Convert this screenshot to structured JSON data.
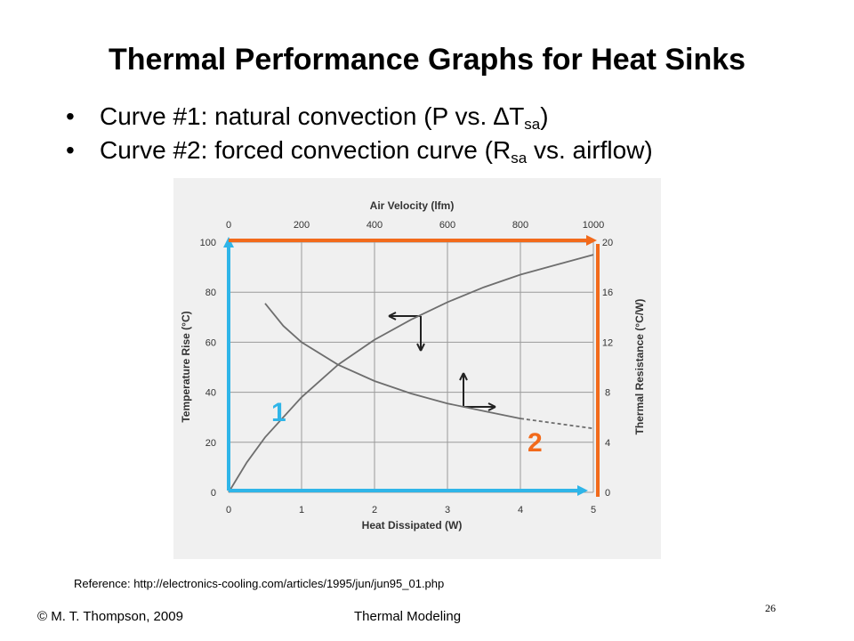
{
  "slide": {
    "title": "Thermal Performance Graphs for Heat Sinks",
    "bullets": [
      {
        "before": "Curve #1: natural convection (P vs. ",
        "symbol": "∆",
        "var": "T",
        "sub": "sa",
        "after": ")"
      },
      {
        "before": "Curve #2: forced convection curve (R",
        "sub": "sa",
        "after": " vs. airflow)"
      }
    ],
    "reference": "Reference:  http://electronics-cooling.com/articles/1995/jun/jun95_01.php",
    "footer_left": "© M. T. Thompson, 2009",
    "footer_center": "Thermal Modeling",
    "page_number": "26"
  },
  "chart_data": {
    "type": "line",
    "title": "",
    "top_axis": {
      "label": "Air Velocity (lfm)",
      "ticks": [
        "0",
        "200",
        "400",
        "600",
        "800",
        "1000"
      ],
      "range": [
        0,
        1000
      ]
    },
    "bottom_axis": {
      "label": "Heat Dissipated (W)",
      "ticks": [
        "0",
        "1",
        "2",
        "3",
        "4",
        "5"
      ],
      "range": [
        0,
        5
      ]
    },
    "left_axis": {
      "label": "Temperature Rise (°C)",
      "ticks": [
        "0",
        "20",
        "40",
        "60",
        "80",
        "100"
      ],
      "range": [
        0,
        100
      ]
    },
    "right_axis": {
      "label": "Thermal Resistance (°C/W)",
      "ticks": [
        "0",
        "4",
        "8",
        "12",
        "16",
        "20"
      ],
      "range": [
        0,
        20
      ]
    },
    "grid": true,
    "series": [
      {
        "x_axis": "bottom",
        "y_axis": "left",
        "x": [
          0,
          0.25,
          0.5,
          1,
          1.5,
          2,
          2.5,
          3,
          3.5,
          4,
          4.5,
          5
        ],
        "y": [
          0,
          12,
          22,
          38,
          51,
          61,
          69,
          76,
          82,
          87,
          91,
          95
        ]
      },
      {
        "x_axis": "top",
        "y_axis": "right",
        "x": [
          100,
          150,
          200,
          300,
          400,
          500,
          600,
          700,
          800,
          900,
          1000
        ],
        "y": [
          15.1,
          13.3,
          12.0,
          10.2,
          8.9,
          7.9,
          7.1,
          6.5,
          5.9,
          5.5,
          5.1
        ],
        "dashed_from": 800
      }
    ],
    "overlay_labels": [
      {
        "text": "1",
        "color": "#2fb5e8"
      },
      {
        "text": "2",
        "color": "#f26a1b"
      }
    ],
    "colors": {
      "axis_highlight_1": "#2fb5e8",
      "axis_highlight_2": "#f26a1b",
      "curve": "#6e6e6e",
      "background": "#f0f0f0"
    }
  }
}
